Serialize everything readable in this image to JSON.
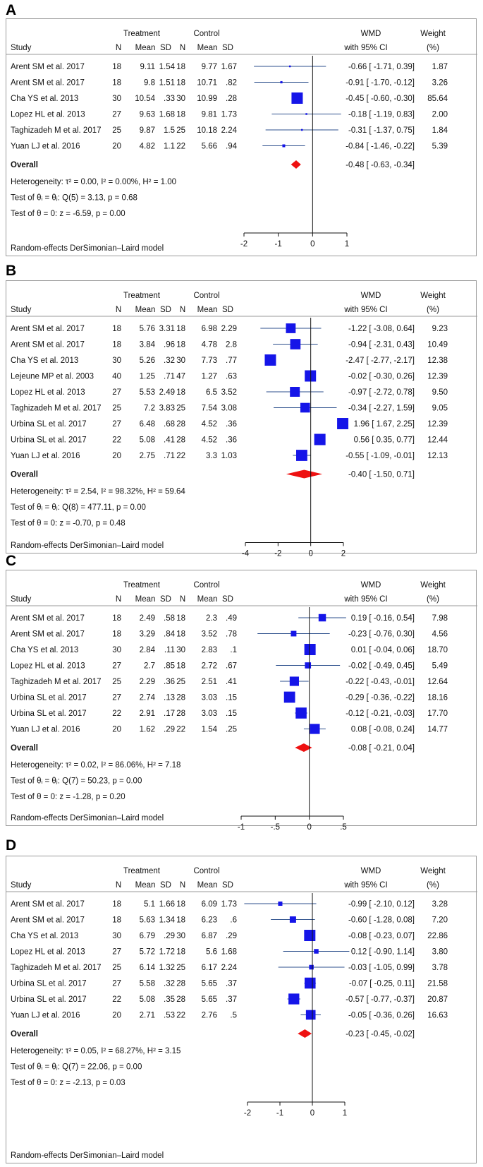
{
  "panels": [
    {
      "label": "A",
      "headers": {
        "treatment": "Treatment",
        "control": "Control",
        "study": "Study",
        "n1": "N",
        "mean1": "Mean",
        "sd1": "SD",
        "n2": "N",
        "mean2": "Mean",
        "sd2": "SD",
        "wmd": "WMD",
        "ci": "with 95% CI",
        "weight": "Weight",
        "pct": "(%)"
      },
      "overall_label": "Overall",
      "overall_ci_text": "-0.48 [ -0.63, -0.34]",
      "heterogeneity": "Heterogeneity: τ² = 0.00, I² = 0.00%, H² = 1.00",
      "test_q": "Test of θᵢ = θⱼ: Q(5) = 3.13, p = 0.68",
      "test_z": "Test of θ = 0: z = -6.59, p = 0.00",
      "model": "Random-effects DerSimonian–Laird model",
      "chart_data": {
        "type": "forest",
        "x_range": [
          -2,
          1
        ],
        "ticks": [
          -2,
          -1,
          0,
          1
        ],
        "tick_labels": [
          "-2",
          "-1",
          "0",
          "1"
        ],
        "studies": [
          {
            "study": "Arent SM et al. 2017",
            "n1": "18",
            "mean1": "9.11",
            "sd1": "1.54",
            "n2": "18",
            "mean2": "9.77",
            "sd2": "1.67",
            "wmd": -0.66,
            "lo": -1.71,
            "hi": 0.39,
            "ci_text": "-0.66 [ -1.71, 0.39]",
            "weight": 1.87,
            "weight_text": "1.87"
          },
          {
            "study": "Arent SM et al. 2017",
            "n1": "18",
            "mean1": "9.8",
            "sd1": "1.51",
            "n2": "18",
            "mean2": "10.71",
            "sd2": ".82",
            "wmd": -0.91,
            "lo": -1.7,
            "hi": -0.12,
            "ci_text": "-0.91 [ -1.70, -0.12]",
            "weight": 3.26,
            "weight_text": "3.26"
          },
          {
            "study": "Cha YS et al. 2013",
            "n1": "30",
            "mean1": "10.54",
            "sd1": ".33",
            "n2": "30",
            "mean2": "10.99",
            "sd2": ".28",
            "wmd": -0.45,
            "lo": -0.6,
            "hi": -0.3,
            "ci_text": "-0.45 [ -0.60, -0.30]",
            "weight": 85.64,
            "weight_text": "85.64"
          },
          {
            "study": "Lopez HL et al. 2013",
            "n1": "27",
            "mean1": "9.63",
            "sd1": "1.68",
            "n2": "18",
            "mean2": "9.81",
            "sd2": "1.73",
            "wmd": -0.18,
            "lo": -1.19,
            "hi": 0.83,
            "ci_text": "-0.18 [ -1.19, 0.83]",
            "weight": 2.0,
            "weight_text": "2.00"
          },
          {
            "study": "Taghizadeh M et al. 2017",
            "n1": "25",
            "mean1": "9.87",
            "sd1": "1.5",
            "n2": "25",
            "mean2": "10.18",
            "sd2": "2.24",
            "wmd": -0.31,
            "lo": -1.37,
            "hi": 0.75,
            "ci_text": "-0.31 [ -1.37, 0.75]",
            "weight": 1.84,
            "weight_text": "1.84"
          },
          {
            "study": "Yuan LJ et al. 2016",
            "n1": "20",
            "mean1": "4.82",
            "sd1": "1.1",
            "n2": "22",
            "mean2": "5.66",
            "sd2": ".94",
            "wmd": -0.84,
            "lo": -1.46,
            "hi": -0.22,
            "ci_text": "-0.84 [ -1.46, -0.22]",
            "weight": 5.39,
            "weight_text": "5.39"
          }
        ],
        "overall": {
          "wmd": -0.48,
          "lo": -0.63,
          "hi": -0.34
        }
      }
    },
    {
      "label": "B",
      "headers": {
        "treatment": "Treatment",
        "control": "Control",
        "study": "Study",
        "n1": "N",
        "mean1": "Mean",
        "sd1": "SD",
        "n2": "N",
        "mean2": "Mean",
        "sd2": "SD",
        "wmd": "WMD",
        "ci": "with 95% CI",
        "weight": "Weight",
        "pct": "(%)"
      },
      "overall_label": "Overall",
      "overall_ci_text": "-0.40 [ -1.50, 0.71]",
      "heterogeneity": "Heterogeneity: τ² = 2.54, I² = 98.32%, H² = 59.64",
      "test_q": "Test of θᵢ = θⱼ: Q(8) = 477.11, p = 0.00",
      "test_z": "Test of θ = 0: z = -0.70, p = 0.48",
      "model": "Random-effects DerSimonian–Laird model",
      "chart_data": {
        "type": "forest",
        "x_range": [
          -4,
          2
        ],
        "ticks": [
          -4,
          -2,
          0,
          2
        ],
        "tick_labels": [
          "-4",
          "-2",
          "0",
          "2"
        ],
        "studies": [
          {
            "study": "Arent SM et al. 2017",
            "n1": "18",
            "mean1": "5.76",
            "sd1": "3.31",
            "n2": "18",
            "mean2": "6.98",
            "sd2": "2.29",
            "wmd": -1.22,
            "lo": -3.08,
            "hi": 0.64,
            "ci_text": "-1.22 [ -3.08, 0.64]",
            "weight": 9.23,
            "weight_text": "9.23"
          },
          {
            "study": "Arent SM et al. 2017",
            "n1": "18",
            "mean1": "3.84",
            "sd1": ".96",
            "n2": "18",
            "mean2": "4.78",
            "sd2": "2.8",
            "wmd": -0.94,
            "lo": -2.31,
            "hi": 0.43,
            "ci_text": "-0.94 [ -2.31, 0.43]",
            "weight": 10.49,
            "weight_text": "10.49"
          },
          {
            "study": "Cha YS et al. 2013",
            "n1": "30",
            "mean1": "5.26",
            "sd1": ".32",
            "n2": "30",
            "mean2": "7.73",
            "sd2": ".77",
            "wmd": -2.47,
            "lo": -2.77,
            "hi": -2.17,
            "ci_text": "-2.47 [ -2.77, -2.17]",
            "weight": 12.38,
            "weight_text": "12.38"
          },
          {
            "study": "Lejeune MP et al.  2003",
            "n1": "40",
            "mean1": "1.25",
            "sd1": ".71",
            "n2": "47",
            "mean2": "1.27",
            "sd2": ".63",
            "wmd": -0.02,
            "lo": -0.3,
            "hi": 0.26,
            "ci_text": "-0.02 [ -0.30, 0.26]",
            "weight": 12.39,
            "weight_text": "12.39"
          },
          {
            "study": "Lopez HL et al. 2013",
            "n1": "27",
            "mean1": "5.53",
            "sd1": "2.49",
            "n2": "18",
            "mean2": "6.5",
            "sd2": "3.52",
            "wmd": -0.97,
            "lo": -2.72,
            "hi": 0.78,
            "ci_text": "-0.97 [ -2.72, 0.78]",
            "weight": 9.5,
            "weight_text": "9.50"
          },
          {
            "study": "Taghizadeh M et al. 2017",
            "n1": "25",
            "mean1": "7.2",
            "sd1": "3.83",
            "n2": "25",
            "mean2": "7.54",
            "sd2": "3.08",
            "wmd": -0.34,
            "lo": -2.27,
            "hi": 1.59,
            "ci_text": "-0.34 [ -2.27, 1.59]",
            "weight": 9.05,
            "weight_text": "9.05"
          },
          {
            "study": "Urbina SL et al. 2017",
            "n1": "27",
            "mean1": "6.48",
            "sd1": ".68",
            "n2": "28",
            "mean2": "4.52",
            "sd2": ".36",
            "wmd": 1.96,
            "lo": 1.67,
            "hi": 2.25,
            "ci_text": "1.96 [ 1.67, 2.25]",
            "weight": 12.39,
            "weight_text": "12.39"
          },
          {
            "study": "Urbina SL et al. 2017",
            "n1": "22",
            "mean1": "5.08",
            "sd1": ".41",
            "n2": "28",
            "mean2": "4.52",
            "sd2": ".36",
            "wmd": 0.56,
            "lo": 0.35,
            "hi": 0.77,
            "ci_text": "0.56 [ 0.35, 0.77]",
            "weight": 12.44,
            "weight_text": "12.44"
          },
          {
            "study": "Yuan LJ et al.  2016",
            "n1": "20",
            "mean1": "2.75",
            "sd1": ".71",
            "n2": "22",
            "mean2": "3.3",
            "sd2": "1.03",
            "wmd": -0.55,
            "lo": -1.09,
            "hi": -0.01,
            "ci_text": "-0.55 [ -1.09, -0.01]",
            "weight": 12.13,
            "weight_text": "12.13"
          }
        ],
        "overall": {
          "wmd": -0.4,
          "lo": -1.5,
          "hi": 0.71
        }
      }
    },
    {
      "label": "C",
      "headers": {
        "treatment": "Treatment",
        "control": "Control",
        "study": "Study",
        "n1": "N",
        "mean1": "Mean",
        "sd1": "SD",
        "n2": "N",
        "mean2": "Mean",
        "sd2": "SD",
        "wmd": "WMD",
        "ci": "with 95% CI",
        "weight": "Weight",
        "pct": "(%)"
      },
      "overall_label": "Overall",
      "overall_ci_text": "-0.08 [ -0.21, 0.04]",
      "heterogeneity": "Heterogeneity: τ² = 0.02, I² = 86.06%, H² = 7.18",
      "test_q": "Test of θᵢ = θⱼ: Q(7) = 50.23, p = 0.00",
      "test_z": "Test of θ = 0: z = -1.28, p = 0.20",
      "model": "Random-effects DerSimonian–Laird model",
      "chart_data": {
        "type": "forest",
        "x_range": [
          -1,
          0.5
        ],
        "ticks": [
          -1,
          -0.5,
          0,
          0.5
        ],
        "tick_labels": [
          "-1",
          "-.5",
          "0",
          ".5"
        ],
        "studies": [
          {
            "study": "Arent SM et al. 2017",
            "n1": "18",
            "mean1": "2.49",
            "sd1": ".58",
            "n2": "18",
            "mean2": "2.3",
            "sd2": ".49",
            "wmd": 0.19,
            "lo": -0.16,
            "hi": 0.54,
            "ci_text": "0.19 [ -0.16, 0.54]",
            "weight": 7.98,
            "weight_text": "7.98"
          },
          {
            "study": "Arent SM et al. 2017",
            "n1": "18",
            "mean1": "3.29",
            "sd1": ".84",
            "n2": "18",
            "mean2": "3.52",
            "sd2": ".78",
            "wmd": -0.23,
            "lo": -0.76,
            "hi": 0.3,
            "ci_text": "-0.23 [ -0.76, 0.30]",
            "weight": 4.56,
            "weight_text": "4.56"
          },
          {
            "study": "Cha YS et al. 2013",
            "n1": "30",
            "mean1": "2.84",
            "sd1": ".11",
            "n2": "30",
            "mean2": "2.83",
            "sd2": ".1",
            "wmd": 0.01,
            "lo": -0.04,
            "hi": 0.06,
            "ci_text": "0.01 [ -0.04, 0.06]",
            "weight": 18.7,
            "weight_text": "18.70"
          },
          {
            "study": "Lopez HL et al. 2013",
            "n1": "27",
            "mean1": "2.7",
            "sd1": ".85",
            "n2": "18",
            "mean2": "2.72",
            "sd2": ".67",
            "wmd": -0.02,
            "lo": -0.49,
            "hi": 0.45,
            "ci_text": "-0.02 [ -0.49, 0.45]",
            "weight": 5.49,
            "weight_text": "5.49"
          },
          {
            "study": "Taghizadeh M et al. 2017",
            "n1": "25",
            "mean1": "2.29",
            "sd1": ".36",
            "n2": "25",
            "mean2": "2.51",
            "sd2": ".41",
            "wmd": -0.22,
            "lo": -0.43,
            "hi": -0.01,
            "ci_text": "-0.22 [ -0.43, -0.01]",
            "weight": 12.64,
            "weight_text": "12.64"
          },
          {
            "study": "Urbina SL et al. 2017",
            "n1": "27",
            "mean1": "2.74",
            "sd1": ".13",
            "n2": "28",
            "mean2": "3.03",
            "sd2": ".15",
            "wmd": -0.29,
            "lo": -0.36,
            "hi": -0.22,
            "ci_text": "-0.29 [ -0.36, -0.22]",
            "weight": 18.16,
            "weight_text": "18.16"
          },
          {
            "study": "Urbina SL et al. 2017",
            "n1": "22",
            "mean1": "2.91",
            "sd1": ".17",
            "n2": "28",
            "mean2": "3.03",
            "sd2": ".15",
            "wmd": -0.12,
            "lo": -0.21,
            "hi": -0.03,
            "ci_text": "-0.12 [ -0.21, -0.03]",
            "weight": 17.7,
            "weight_text": "17.70"
          },
          {
            "study": "Yuan LJ et al.  2016",
            "n1": "20",
            "mean1": "1.62",
            "sd1": ".29",
            "n2": "22",
            "mean2": "1.54",
            "sd2": ".25",
            "wmd": 0.08,
            "lo": -0.08,
            "hi": 0.24,
            "ci_text": "0.08 [ -0.08, 0.24]",
            "weight": 14.77,
            "weight_text": "14.77"
          }
        ],
        "overall": {
          "wmd": -0.08,
          "lo": -0.21,
          "hi": 0.04
        }
      }
    },
    {
      "label": "D",
      "headers": {
        "treatment": "Treatment",
        "control": "Control",
        "study": "Study",
        "n1": "N",
        "mean1": "Mean",
        "sd1": "SD",
        "n2": "N",
        "mean2": "Mean",
        "sd2": "SD",
        "wmd": "WMD",
        "ci": "with 95% CI",
        "weight": "Weight",
        "pct": "(%)"
      },
      "overall_label": "Overall",
      "overall_ci_text": "-0.23 [ -0.45, -0.02]",
      "heterogeneity": "Heterogeneity: τ² = 0.05, I² = 68.27%, H² = 3.15",
      "test_q": "Test of θᵢ = θⱼ: Q(7) = 22.06, p = 0.00",
      "test_z": "Test of θ = 0: z = -2.13, p = 0.03",
      "model": "Random-effects DerSimonian–Laird model",
      "chart_data": {
        "type": "forest",
        "x_range": [
          -2,
          1
        ],
        "ticks": [
          -2,
          -1,
          0,
          1
        ],
        "tick_labels": [
          "-2",
          "-1",
          "0",
          "1"
        ],
        "studies": [
          {
            "study": "Arent SM et al. 2017",
            "n1": "18",
            "mean1": "5.1",
            "sd1": "1.66",
            "n2": "18",
            "mean2": "6.09",
            "sd2": "1.73",
            "wmd": -0.99,
            "lo": -2.1,
            "hi": 0.12,
            "ci_text": "-0.99 [ -2.10, 0.12]",
            "weight": 3.28,
            "weight_text": "3.28"
          },
          {
            "study": "Arent SM et al. 2017",
            "n1": "18",
            "mean1": "5.63",
            "sd1": "1.34",
            "n2": "18",
            "mean2": "6.23",
            "sd2": ".6",
            "wmd": -0.6,
            "lo": -1.28,
            "hi": 0.08,
            "ci_text": "-0.60 [ -1.28, 0.08]",
            "weight": 7.2,
            "weight_text": "7.20"
          },
          {
            "study": "Cha YS et al. 2013",
            "n1": "30",
            "mean1": "6.79",
            "sd1": ".29",
            "n2": "30",
            "mean2": "6.87",
            "sd2": ".29",
            "wmd": -0.08,
            "lo": -0.23,
            "hi": 0.07,
            "ci_text": "-0.08 [ -0.23, 0.07]",
            "weight": 22.86,
            "weight_text": "22.86"
          },
          {
            "study": "Lopez HL et al. 2013",
            "n1": "27",
            "mean1": "5.72",
            "sd1": "1.72",
            "n2": "18",
            "mean2": "5.6",
            "sd2": "1.68",
            "wmd": 0.12,
            "lo": -0.9,
            "hi": 1.14,
            "ci_text": "0.12 [ -0.90, 1.14]",
            "weight": 3.8,
            "weight_text": "3.80"
          },
          {
            "study": "Taghizadeh M et al. 2017",
            "n1": "25",
            "mean1": "6.14",
            "sd1": "1.32",
            "n2": "25",
            "mean2": "6.17",
            "sd2": "2.24",
            "wmd": -0.03,
            "lo": -1.05,
            "hi": 0.99,
            "ci_text": "-0.03 [ -1.05, 0.99]",
            "weight": 3.78,
            "weight_text": "3.78"
          },
          {
            "study": "Urbina SL et al. 2017",
            "n1": "27",
            "mean1": "5.58",
            "sd1": ".32",
            "n2": "28",
            "mean2": "5.65",
            "sd2": ".37",
            "wmd": -0.07,
            "lo": -0.25,
            "hi": 0.11,
            "ci_text": "-0.07 [ -0.25, 0.11]",
            "weight": 21.58,
            "weight_text": "21.58"
          },
          {
            "study": "Urbina SL et al. 2017",
            "n1": "22",
            "mean1": "5.08",
            "sd1": ".35",
            "n2": "28",
            "mean2": "5.65",
            "sd2": ".37",
            "wmd": -0.57,
            "lo": -0.77,
            "hi": -0.37,
            "ci_text": "-0.57 [ -0.77, -0.37]",
            "weight": 20.87,
            "weight_text": "20.87"
          },
          {
            "study": "Yuan LJ et al.  2016",
            "n1": "20",
            "mean1": "2.71",
            "sd1": ".53",
            "n2": "22",
            "mean2": "2.76",
            "sd2": ".5",
            "wmd": -0.05,
            "lo": -0.36,
            "hi": 0.26,
            "ci_text": "-0.05 [ -0.36, 0.26]",
            "weight": 16.63,
            "weight_text": "16.63"
          }
        ],
        "overall": {
          "wmd": -0.23,
          "lo": -0.45,
          "hi": -0.02
        }
      }
    }
  ],
  "colors": {
    "marker": "#1515e8",
    "ci_line": "#2c4f8c",
    "diamond": "#ee1111",
    "axis": "#111111",
    "border": "#9a9a9a"
  }
}
